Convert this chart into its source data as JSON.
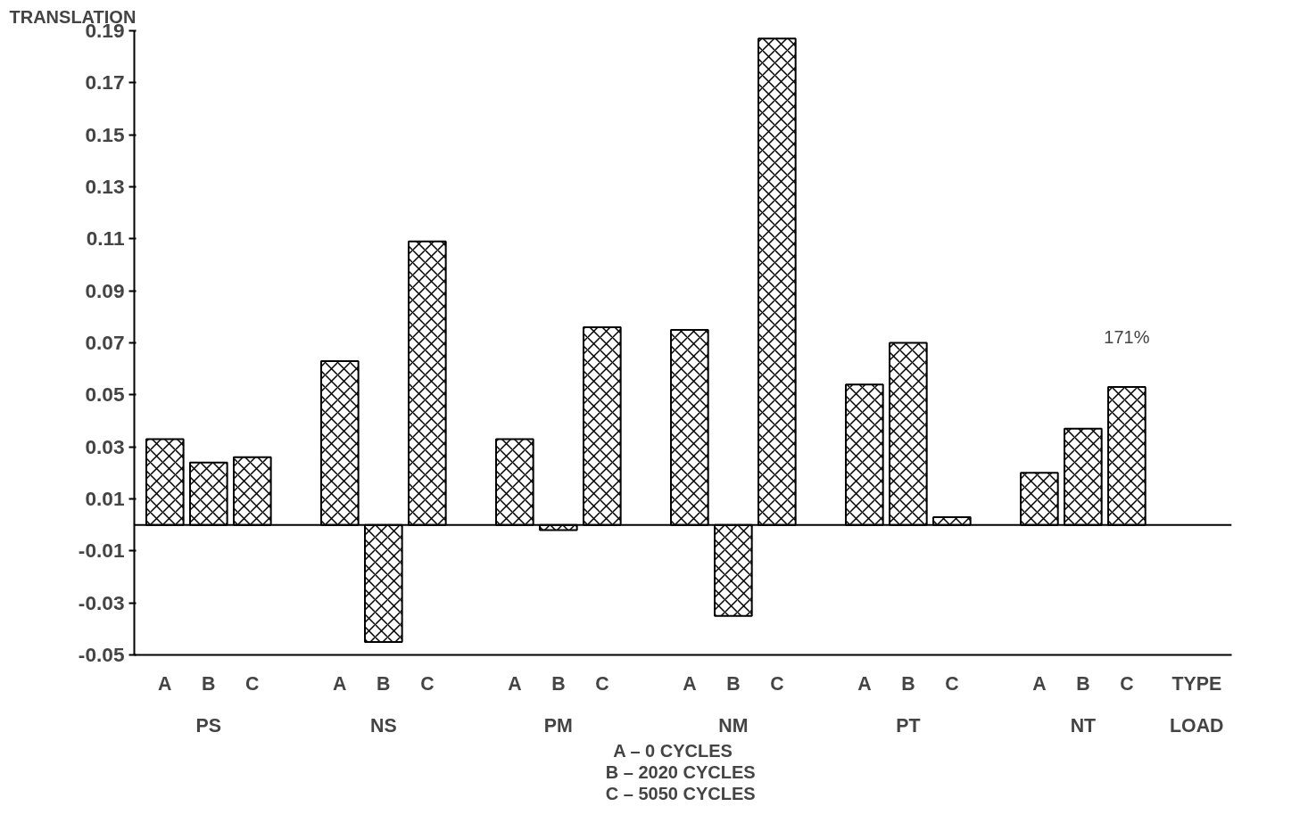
{
  "chart_data": {
    "type": "bar",
    "ylabel": "TRANSLATION",
    "categories": [
      "A",
      "B",
      "C",
      null,
      "A",
      "B",
      "C",
      null,
      "A",
      "B",
      "C",
      null,
      "A",
      "B",
      "C",
      null,
      "A",
      "B",
      "C",
      null,
      "A",
      "B",
      "C"
    ],
    "values": [
      0.033,
      0.024,
      0.026,
      null,
      0.063,
      -0.045,
      0.109,
      null,
      0.033,
      -0.002,
      0.076,
      null,
      0.075,
      -0.035,
      0.187,
      null,
      0.054,
      0.07,
      0.003,
      null,
      0.02,
      0.037,
      0.053
    ],
    "color": "#000000",
    "ylim": [
      -0.05,
      0.19
    ],
    "yticks": [
      {
        "value": -0.05,
        "label": "-0.05"
      },
      {
        "value": -0.03,
        "label": "-0.03"
      },
      {
        "value": -0.01,
        "label": "-0.01"
      },
      {
        "value": 0.01,
        "label": "0.01"
      },
      {
        "value": 0.03,
        "label": "0.03"
      },
      {
        "value": 0.05,
        "label": "0.05"
      },
      {
        "value": 0.07,
        "label": "0.07"
      },
      {
        "value": 0.09,
        "label": "0.09"
      },
      {
        "value": 0.11,
        "label": "0.11"
      },
      {
        "value": 0.13,
        "label": "0.13"
      },
      {
        "value": 0.15,
        "label": "0.15"
      },
      {
        "value": 0.17,
        "label": "0.17"
      },
      {
        "value": 0.19,
        "label": "0.19"
      }
    ],
    "grid": false,
    "annotations": [
      "PS",
      "NS",
      "PM",
      "NM",
      "PT",
      "NT",
      "TYPE",
      "LOAD",
      "171%",
      "A –    0  CYCLES",
      "B – 2020  CYCLES",
      "C – 5050  CYCLES"
    ]
  }
}
